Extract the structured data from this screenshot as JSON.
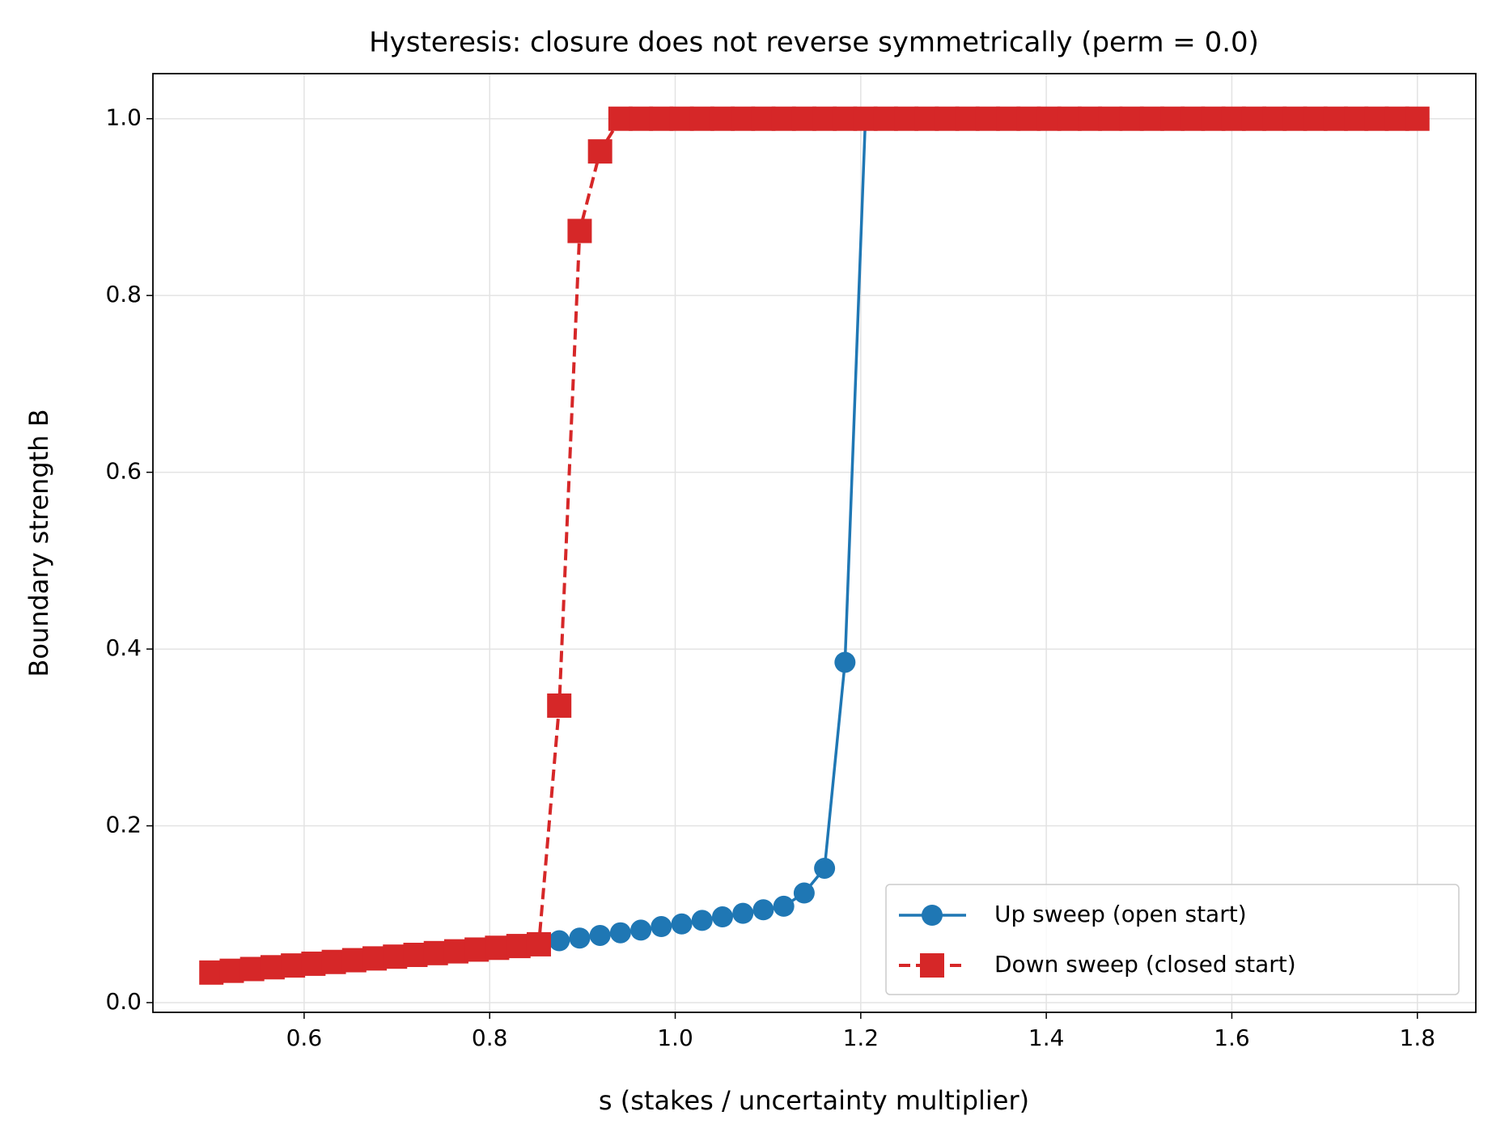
{
  "chart_data": {
    "type": "line",
    "title": "Hysteresis: closure does not reverse symmetrically (perm = 0.0)",
    "xlabel": "s (stakes / uncertainty multiplier)",
    "ylabel": "Boundary strength B",
    "x": [
      0.5,
      0.522,
      0.544,
      0.566,
      0.588,
      0.61,
      0.632,
      0.654,
      0.676,
      0.698,
      0.72,
      0.742,
      0.764,
      0.786,
      0.808,
      0.831,
      0.853,
      0.875,
      0.897,
      0.919,
      0.941,
      0.963,
      0.985,
      1.007,
      1.029,
      1.051,
      1.073,
      1.095,
      1.117,
      1.139,
      1.161,
      1.183,
      1.205,
      1.227,
      1.249,
      1.271,
      1.293,
      1.315,
      1.337,
      1.359,
      1.381,
      1.403,
      1.425,
      1.447,
      1.469,
      1.492,
      1.514,
      1.536,
      1.558,
      1.58,
      1.602,
      1.624,
      1.646,
      1.668,
      1.69,
      1.712,
      1.734,
      1.756,
      1.778,
      1.8
    ],
    "series": [
      {
        "name": "Up sweep (open start)",
        "color": "#1f77b4",
        "marker": "circle",
        "dash": false,
        "values": [
          0.034,
          0.036,
          0.038,
          0.04,
          0.042,
          0.044,
          0.046,
          0.048,
          0.05,
          0.052,
          0.054,
          0.056,
          0.058,
          0.06,
          0.062,
          0.064,
          0.066,
          0.07,
          0.073,
          0.076,
          0.079,
          0.082,
          0.086,
          0.089,
          0.093,
          0.097,
          0.101,
          0.105,
          0.109,
          0.124,
          0.152,
          0.385,
          1,
          1,
          1,
          1,
          1,
          1,
          1,
          1,
          1,
          1,
          1,
          1,
          1,
          1,
          1,
          1,
          1,
          1,
          1,
          1,
          1,
          1,
          1,
          1,
          1,
          1,
          1,
          1
        ]
      },
      {
        "name": "Down sweep (closed start)",
        "color": "#d62728",
        "marker": "square",
        "dash": true,
        "values": [
          0.034,
          0.036,
          0.038,
          0.04,
          0.042,
          0.044,
          0.046,
          0.048,
          0.05,
          0.052,
          0.054,
          0.056,
          0.058,
          0.06,
          0.062,
          0.064,
          0.066,
          0.336,
          0.873,
          0.963,
          1,
          1,
          1,
          1,
          1,
          1,
          1,
          1,
          1,
          1,
          1,
          1,
          1,
          1,
          1,
          1,
          1,
          1,
          1,
          1,
          1,
          1,
          1,
          1,
          1,
          1,
          1,
          1,
          1,
          1,
          1,
          1,
          1,
          1,
          1,
          1,
          1,
          1,
          1,
          1
        ]
      }
    ],
    "xlim": [
      0.437,
      1.863
    ],
    "ylim": [
      -0.011,
      1.051
    ],
    "xticks": [
      0.6,
      0.8,
      {
        "value": 1.0,
        "label": "1.0"
      },
      1.2,
      1.4,
      1.6,
      1.8
    ],
    "yticks": [
      {
        "value": 0.0,
        "label": "0.0"
      },
      0.2,
      0.4,
      0.6,
      0.8,
      {
        "value": 1.0,
        "label": "1.0"
      }
    ],
    "grid": true,
    "legend": "lower right"
  }
}
